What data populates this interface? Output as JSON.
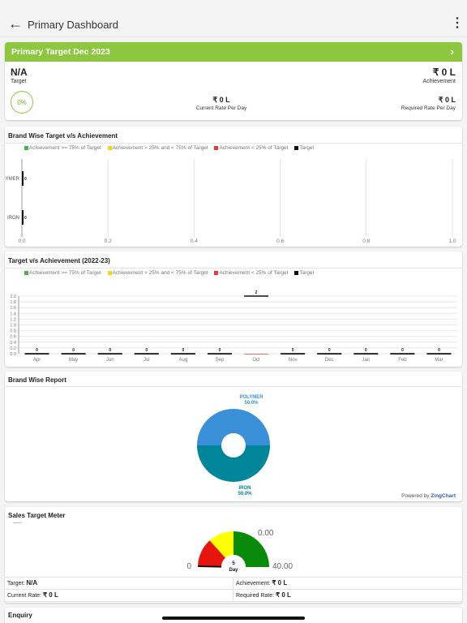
{
  "appbar": {
    "title": "Primary Dashboard",
    "back_icon": "arrow-left-icon",
    "menu_icon": "more-vertical-icon"
  },
  "primary_target": {
    "title": "Primary Target Dec 2023",
    "target_value": "N/A",
    "target_label": "Target",
    "achievement_value": "₹ 0 L",
    "achievement_label": "Achievement",
    "percent": "0%",
    "current_rate_value": "₹ 0 L",
    "current_rate_label": "Current Rate Per Day",
    "required_rate_value": "₹ 0 L",
    "required_rate_label": "Required Rate Per Day",
    "accent": "#8dc63f"
  },
  "legend": {
    "items": [
      {
        "label": "Achievement >= 75% of Target",
        "color": "#4caf50"
      },
      {
        "label": "Achievement > 25% and < 75% of Target",
        "color": "#f5d516"
      },
      {
        "label": "Achievement < 25% of Target",
        "color": "#e53935"
      },
      {
        "label": "Target",
        "color": "#111111"
      }
    ]
  },
  "brand_chart": {
    "title": "Brand Wise Target v/s Achievement",
    "chart_data": {
      "type": "bar",
      "orientation": "horizontal",
      "categories": [
        "POLYMER",
        "IRON"
      ],
      "series": [
        {
          "name": "Target",
          "values": [
            0,
            0
          ]
        }
      ],
      "xlim": [
        0,
        1.0
      ],
      "x_ticks": [
        "0.0",
        "0.2",
        "0.4",
        "0.6",
        "0.8",
        "1.0"
      ],
      "category_labels_visible": [
        "LYMER",
        "IRON"
      ],
      "data_labels": [
        "0",
        "0"
      ],
      "grid": true
    }
  },
  "yearly_chart": {
    "title": "Target v/s Achievement (2022-23)",
    "chart_data": {
      "type": "bar",
      "categories": [
        "Apr",
        "May",
        "Jun",
        "Jul",
        "Aug",
        "Sep",
        "Oct",
        "Nov",
        "Dec",
        "Jan",
        "Feb",
        "Mar"
      ],
      "series": [
        {
          "name": "Target",
          "values": [
            0,
            0,
            0,
            0,
            0,
            0,
            2,
            0,
            0,
            0,
            0,
            0
          ]
        },
        {
          "name": "Achievement",
          "values": [
            0,
            0,
            0,
            0,
            0,
            0,
            0,
            0,
            0,
            0,
            0,
            0
          ]
        }
      ],
      "ylim": [
        0,
        2.0
      ],
      "y_ticks": [
        "0.0",
        "0.2",
        "0.4",
        "0.6",
        "0.8",
        "1.0",
        "1.2",
        "1.4",
        "1.6",
        "1.8",
        "2.0"
      ],
      "data_labels": [
        "0",
        "0",
        "0",
        "0",
        "0",
        "0",
        "2",
        "0",
        "0",
        "0",
        "0",
        "0"
      ],
      "grid": true
    }
  },
  "brand_report": {
    "title": "Brand Wise Report",
    "powered_prefix": "Powered by ",
    "powered_brand": "ZingChart",
    "chart_data": {
      "type": "pie",
      "slices": [
        {
          "name": "POLYMER",
          "value": 50.0,
          "label": "50.0%",
          "color": "#3a8fd9"
        },
        {
          "name": "IRON",
          "value": 50.0,
          "label": "50.0%",
          "color": "#00869a"
        }
      ]
    }
  },
  "meter": {
    "title": "Sales Target Meter",
    "min_label": "0",
    "max_label": "40.00",
    "top_label": "0.00",
    "center_value": "5",
    "center_unit": "Day",
    "colors": {
      "red": "#e8140f",
      "yellow": "#ffff00",
      "green": "#0a8a0a"
    },
    "rows": [
      [
        {
          "label": "Target: ",
          "value": "N/A"
        },
        {
          "label": "Achievement: ",
          "value": "₹ 0 L"
        }
      ],
      [
        {
          "label": "Current Rate: ",
          "value": "₹ 0 L"
        },
        {
          "label": "Required Rate: ",
          "value": "₹ 0 L"
        }
      ]
    ]
  },
  "enquiry": {
    "title": "Enquiry"
  }
}
